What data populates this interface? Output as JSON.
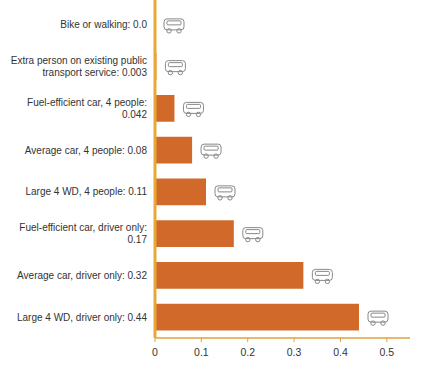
{
  "chart_data": {
    "type": "bar",
    "orientation": "horizontal",
    "categories": [
      "Bike or walking: 0.0",
      "Extra person on existing public transport service: 0.003",
      "Fuel-efficient car, 4 people: 0.042",
      "Average car, 4 people: 0.08",
      "Large 4 WD, 4 people: 0.11",
      "Fuel-efficient car, driver only: 0.17",
      "Average car, driver only: 0.32",
      "Large 4 WD, driver only: 0.44"
    ],
    "values": [
      0.0,
      0.003,
      0.042,
      0.08,
      0.11,
      0.17,
      0.32,
      0.44
    ],
    "color": "#d0692a",
    "xlim": [
      0,
      0.55
    ],
    "xticks": [
      0,
      0.1,
      0.2,
      0.3,
      0.4,
      0.5
    ],
    "grid": false
  }
}
